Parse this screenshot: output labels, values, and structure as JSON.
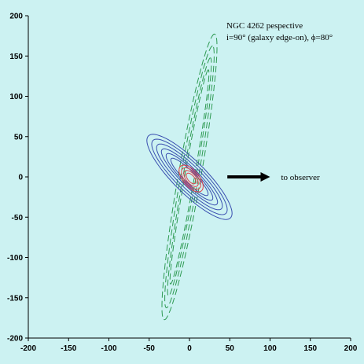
{
  "chart_data": {
    "type": "line",
    "title": "",
    "xlabel": "",
    "ylabel": "",
    "xlim": [
      -200,
      200
    ],
    "ylim": [
      -200,
      200
    ],
    "x_ticks": [
      -200,
      -150,
      -100,
      -50,
      0,
      50,
      100,
      150,
      200
    ],
    "y_ticks": [
      -200,
      -150,
      -100,
      -50,
      0,
      50,
      100,
      150,
      200
    ],
    "grid": false,
    "legend": "none",
    "annotation": {
      "line1": "NGC 4262 pespective",
      "line2": "i=90° (galaxy edge-on), ϕ=80°"
    },
    "arrow": {
      "label": "to observer",
      "from": [
        47,
        0
      ],
      "to": [
        100,
        0
      ]
    },
    "series": [
      {
        "color": "#2e9a52",
        "dash": "8 4",
        "rings": [
          {
            "a": 180,
            "b": 14,
            "tilt_deg": 80,
            "cx": 0,
            "cy": 0
          },
          {
            "a": 165,
            "b": 11,
            "tilt_deg": 80,
            "cx": 0,
            "cy": 0
          },
          {
            "a": 150,
            "b": 8,
            "tilt_deg": 80,
            "cx": 0,
            "cy": 0
          },
          {
            "a": 135,
            "b": 6,
            "tilt_deg": 80,
            "cx": 0,
            "cy": 0
          }
        ]
      },
      {
        "color": "#3a4fb0",
        "dash": "",
        "rings": [
          {
            "a": 72,
            "b": 20,
            "tilt_deg": 135,
            "cx": 0,
            "cy": 0
          },
          {
            "a": 64,
            "b": 17,
            "tilt_deg": 135,
            "cx": 0,
            "cy": 0
          },
          {
            "a": 56,
            "b": 14,
            "tilt_deg": 135,
            "cx": 0,
            "cy": 0
          },
          {
            "a": 48,
            "b": 11,
            "tilt_deg": 135,
            "cx": 0,
            "cy": 0
          },
          {
            "a": 40,
            "b": 9,
            "tilt_deg": 135,
            "cx": 0,
            "cy": 0
          },
          {
            "a": 32,
            "b": 7,
            "tilt_deg": 135,
            "cx": 0,
            "cy": 0
          }
        ]
      },
      {
        "color": "#e0404a",
        "dash": "",
        "rings": [
          {
            "a": 20,
            "b": 10,
            "tilt_deg": 130,
            "cx": 2,
            "cy": -2
          },
          {
            "a": 16,
            "b": 8,
            "tilt_deg": 130,
            "cx": 2,
            "cy": -2
          },
          {
            "a": 12,
            "b": 6,
            "tilt_deg": 130,
            "cx": 2,
            "cy": -2
          },
          {
            "a": 8,
            "b": 4,
            "tilt_deg": 130,
            "cx": 2,
            "cy": -2
          }
        ]
      }
    ]
  },
  "colors": {
    "background": "#ccf2f2",
    "axis": "#000000"
  }
}
